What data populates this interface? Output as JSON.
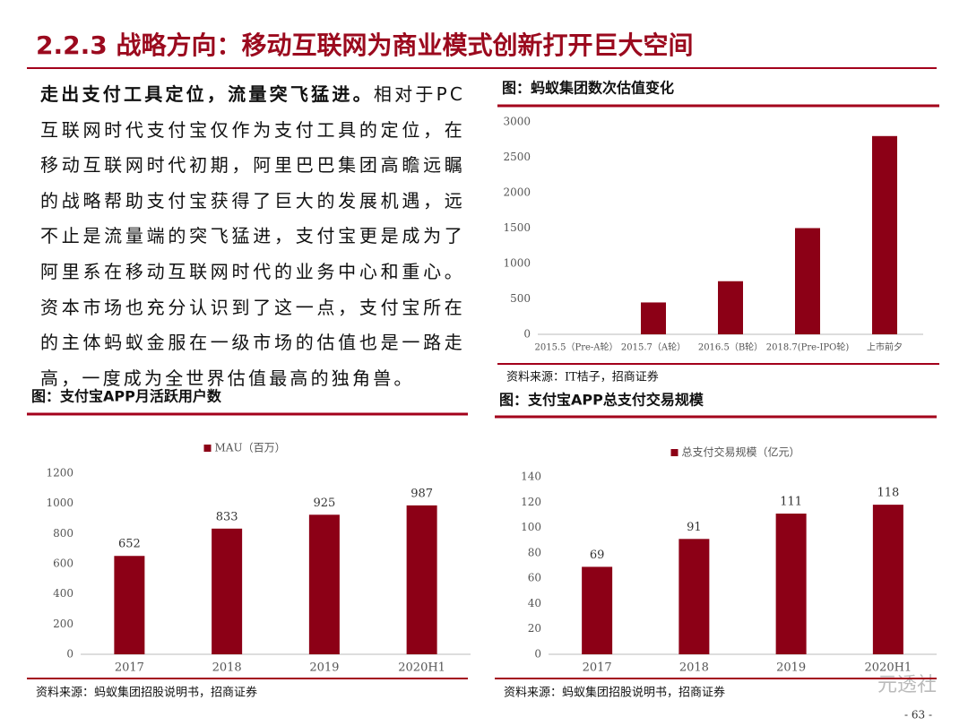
{
  "title": "2.2.3 战略方向：移动互联网为商业模式创新打开巨大空间",
  "body": {
    "lead": "走出支付工具定位，流量突飞猛进。",
    "text": "相对于PC互联网时代支付宝仅作为支付工具的定位，在移动互联网时代初期，阿里巴巴集团高瞻远瞩的战略帮助支付宝获得了巨大的发展机遇，远不止是流量端的突飞猛进，支付宝更是成为了阿里系在移动互联网时代的业务中心和重心。资本市场也充分认识到了这一点，支付宝所在的主体蚂蚁金服在一级市场的估值也是一路走高，一度成为全世界估值最高的独角兽。"
  },
  "chart_data": [
    {
      "type": "bar",
      "title": "图：蚂蚁集团数次估值变化",
      "source": "资料来源：IT桔子，招商证券",
      "categories": [
        "2015.5（Pre-A轮）",
        "2015.7（A轮）",
        "2016.5（B轮）",
        "2018.7(Pre-IPO轮)",
        "上市前夕"
      ],
      "series": [
        {
          "color": "#8c0016",
          "values": [
            null,
            450,
            750,
            1500,
            2800
          ]
        }
      ],
      "ylim": [
        0,
        3000
      ],
      "yticks": [
        0,
        500,
        1000,
        1500,
        2000,
        2500,
        3000
      ],
      "data_labels": false
    },
    {
      "type": "bar",
      "title": "图：支付宝APP月活跃用户数",
      "source": "资料来源：蚂蚁集团招股说明书，招商证券",
      "categories": [
        "2017",
        "2018",
        "2019",
        "2020H1"
      ],
      "series": [
        {
          "name": "MAU（百万）",
          "color": "#8c0016",
          "values": [
            652,
            833,
            925,
            987
          ]
        }
      ],
      "ylim": [
        0,
        1200
      ],
      "yticks": [
        0,
        200,
        400,
        600,
        800,
        1000,
        1200
      ],
      "data_labels": true
    },
    {
      "type": "bar",
      "title": "图：支付宝APP总支付交易规模",
      "source": "资料来源：蚂蚁集团招股说明书，招商证券",
      "categories": [
        "2017",
        "2018",
        "2019",
        "2020H1"
      ],
      "series": [
        {
          "name": "总支付交易规模（亿元）",
          "color": "#8c0016",
          "values": [
            69,
            91,
            111,
            118
          ]
        }
      ],
      "ylim": [
        0,
        140
      ],
      "yticks": [
        0,
        20,
        40,
        60,
        80,
        100,
        120,
        140
      ],
      "data_labels": true
    }
  ],
  "page_number": "- 63 -",
  "watermark": "元透社"
}
